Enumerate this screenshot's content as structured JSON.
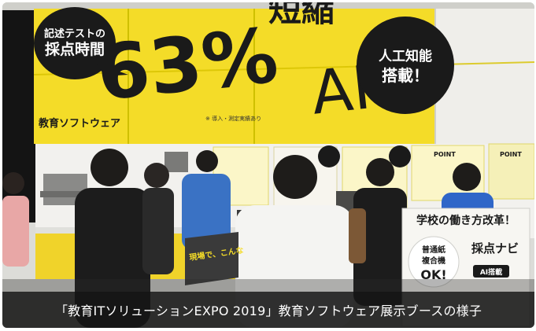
{
  "caption": "「教育ITソリューションEXPO 2019」教育ソフトウェア展示ブースの様子",
  "banner": {
    "bubble_line1": "記述テストの",
    "bubble_line2": "採点時間",
    "percent_value": "63%",
    "percent_word": "短縮",
    "company": "教育ソフトウェア",
    "footnote": "※ 導入・測定実績あり",
    "ai_letters": "AI",
    "ai_line1": "人工知能",
    "ai_line2": "搭載！"
  },
  "signboard": {
    "title": "学校の働き方改革！",
    "product": "採点ナビ",
    "stamp_line1": "普通紙",
    "stamp_line2": "複合機",
    "stamp_line3": "OK!",
    "badge": "AI搭載"
  },
  "side_sign": "現場で、こんな",
  "poster_point": "POINT",
  "colors": {
    "banner_yellow": "#f4dc28",
    "banner_black": "#1a1a1a",
    "booth_wall": "#f2f1ee",
    "caption_bg": "#141414"
  }
}
